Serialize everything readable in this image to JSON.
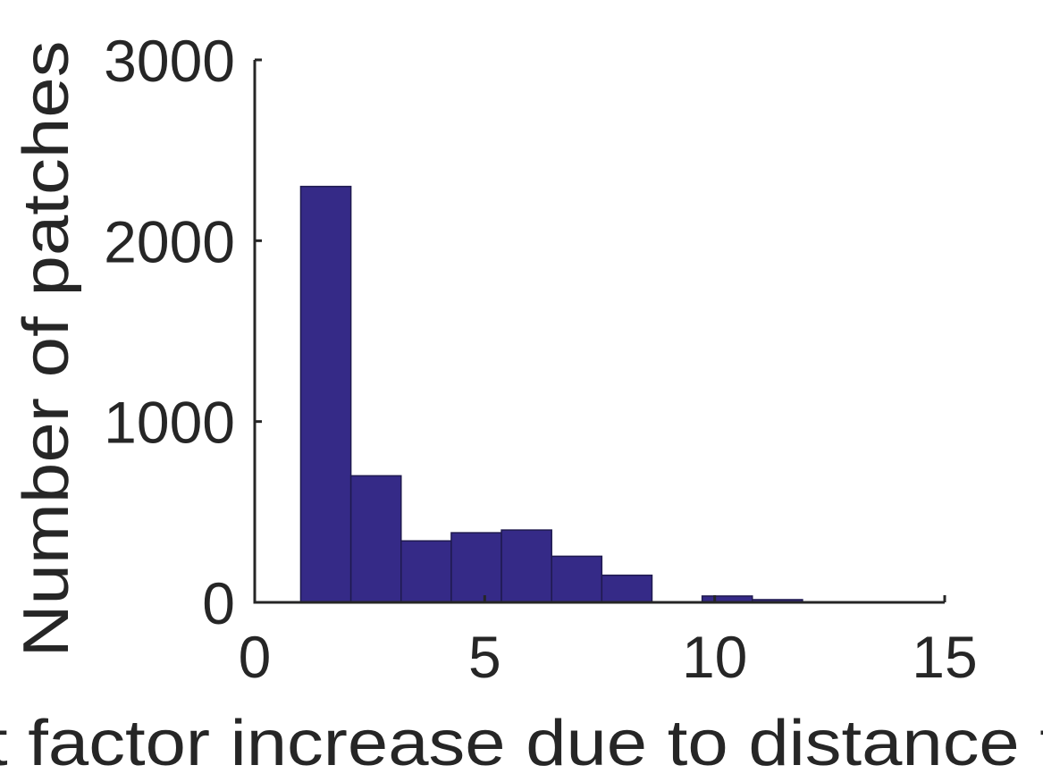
{
  "chart_data": {
    "type": "bar",
    "title": "",
    "xlabel": "t factor increase due to distance f",
    "ylabel": "Number of patches",
    "xlim": [
      0,
      15
    ],
    "ylim": [
      0,
      3000
    ],
    "xticks": [
      "0",
      "5",
      "10",
      "15"
    ],
    "yticks": [
      "0",
      "1000",
      "2000",
      "3000"
    ],
    "bar_color": "#352a87",
    "bins": [
      {
        "x0": 1.0,
        "x1": 2.091,
        "value": 2300
      },
      {
        "x0": 2.091,
        "x1": 3.182,
        "value": 700
      },
      {
        "x0": 3.182,
        "x1": 4.273,
        "value": 340
      },
      {
        "x0": 4.273,
        "x1": 5.364,
        "value": 385
      },
      {
        "x0": 5.364,
        "x1": 6.455,
        "value": 400
      },
      {
        "x0": 6.455,
        "x1": 7.545,
        "value": 255
      },
      {
        "x0": 7.545,
        "x1": 8.636,
        "value": 150
      },
      {
        "x0": 8.636,
        "x1": 9.727,
        "value": 0
      },
      {
        "x0": 9.727,
        "x1": 10.818,
        "value": 35
      },
      {
        "x0": 10.818,
        "x1": 11.909,
        "value": 15
      },
      {
        "x0": 11.909,
        "x1": 13.0,
        "value": 2
      }
    ],
    "grid": false
  }
}
